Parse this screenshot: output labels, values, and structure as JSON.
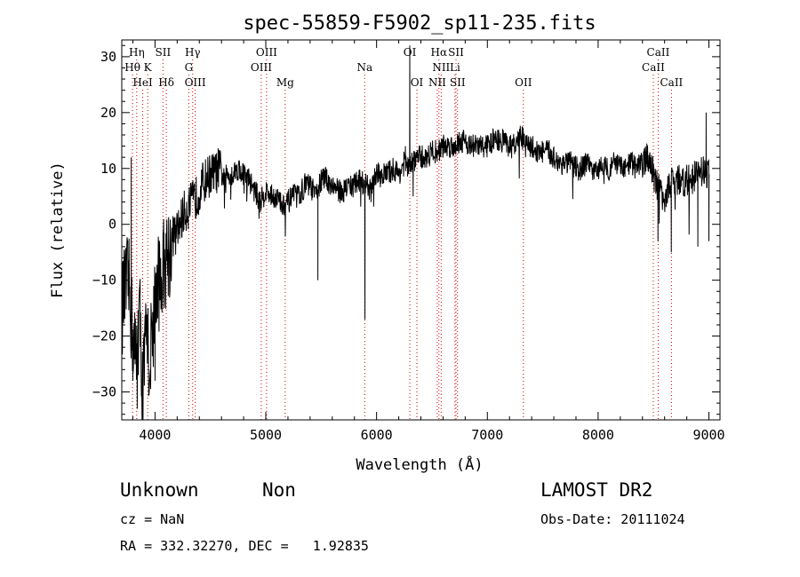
{
  "chart_data": {
    "type": "line",
    "title": "spec-55859-F5902_sp11-235.fits",
    "xlabel": "Wavelength (Å)",
    "ylabel": "Flux (relative)",
    "xlim": [
      3700,
      9100
    ],
    "ylim": [
      -35,
      33
    ],
    "x_ticks": [
      4000,
      5000,
      6000,
      7000,
      8000,
      9000
    ],
    "y_ticks": [
      -30,
      -20,
      -10,
      0,
      10,
      20,
      30
    ],
    "grid": false,
    "line_color": "#000000",
    "marker_color": "#cc0000",
    "spectral_lines": [
      {
        "label": "Hη",
        "x": 3835,
        "row": 0
      },
      {
        "label": "SII",
        "x": 4072,
        "row": 0
      },
      {
        "label": "Hγ",
        "x": 4340,
        "row": 0
      },
      {
        "label": "OIII",
        "x": 5007,
        "row": 0
      },
      {
        "label": "OI",
        "x": 6300,
        "row": 0
      },
      {
        "label": "Hα",
        "x": 6563,
        "row": 0
      },
      {
        "label": "SII",
        "x": 6717,
        "row": 0
      },
      {
        "label": "CaII",
        "x": 8542,
        "row": 0
      },
      {
        "label": "Hθ",
        "x": 3797,
        "row": 1
      },
      {
        "label": "K",
        "x": 3934,
        "row": 1
      },
      {
        "label": "G",
        "x": 4305,
        "row": 1
      },
      {
        "label": "OIII",
        "x": 4959,
        "row": 1
      },
      {
        "label": "Na",
        "x": 5893,
        "row": 1
      },
      {
        "label": "NII",
        "x": 6583,
        "row": 1
      },
      {
        "label": "Li",
        "x": 6708,
        "row": 1
      },
      {
        "label": "CaII",
        "x": 8498,
        "row": 1
      },
      {
        "label": "HeI",
        "x": 3889,
        "row": 2
      },
      {
        "label": "Hδ",
        "x": 4102,
        "row": 2
      },
      {
        "label": "OIII",
        "x": 4363,
        "row": 2
      },
      {
        "label": "Mg",
        "x": 5175,
        "row": 2
      },
      {
        "label": "OI",
        "x": 6364,
        "row": 2
      },
      {
        "label": "NII",
        "x": 6548,
        "row": 2
      },
      {
        "label": "SII",
        "x": 6731,
        "row": 2
      },
      {
        "label": "OII",
        "x": 7325,
        "row": 2
      },
      {
        "label": "CaII",
        "x": 8662,
        "row": 2
      }
    ],
    "series": [
      {
        "x": [
          3700,
          3760,
          3800,
          3830,
          3860,
          3890,
          3920,
          3950,
          3980,
          4010,
          4040,
          4070,
          4100,
          4130,
          4160,
          4190,
          4220,
          4260,
          4300,
          4340,
          4380,
          4420,
          4460,
          4500,
          4540,
          4580,
          4620,
          4660,
          4700,
          4750,
          4800,
          4850,
          4900,
          4950,
          5000,
          5050,
          5100,
          5150,
          5200,
          5250,
          5300,
          5350,
          5400,
          5450,
          5500,
          5550,
          5600,
          5650,
          5700,
          5750,
          5800,
          5850,
          5900,
          5950,
          6000,
          6050,
          6100,
          6150,
          6200,
          6250,
          6300,
          6350,
          6400,
          6450,
          6500,
          6550,
          6600,
          6650,
          6700,
          6750,
          6800,
          6850,
          6900,
          6950,
          7000,
          7050,
          7100,
          7150,
          7200,
          7250,
          7300,
          7350,
          7400,
          7450,
          7500,
          7550,
          7600,
          7650,
          7700,
          7750,
          7800,
          7850,
          7900,
          7950,
          8000,
          8050,
          8100,
          8150,
          8200,
          8250,
          8300,
          8350,
          8400,
          8450,
          8500,
          8550,
          8600,
          8650,
          8700,
          8750,
          8800,
          8850,
          8900,
          8950,
          9000
        ],
        "y": [
          -15,
          -10,
          -20,
          -25,
          -15,
          -30,
          -20,
          -25,
          -18,
          -12,
          -10,
          -8,
          -5,
          -5,
          -2,
          -2,
          0,
          2,
          3,
          4,
          5,
          7,
          8,
          9,
          9,
          10,
          8,
          9,
          9,
          10,
          9,
          8,
          6,
          4,
          6,
          5,
          5,
          3,
          4,
          5,
          5,
          7,
          7,
          5,
          8,
          8,
          7,
          6,
          6,
          7,
          7,
          8,
          7,
          6,
          9,
          9,
          9,
          10,
          9,
          11,
          10,
          12,
          12,
          12,
          13,
          13,
          14,
          14,
          14,
          15,
          15,
          14,
          14,
          14,
          14,
          15,
          15,
          15,
          14,
          14,
          16,
          14,
          14,
          13,
          13,
          13,
          12,
          11,
          11,
          11,
          10,
          10,
          11,
          9,
          10,
          11,
          10,
          11,
          10,
          10,
          11,
          10,
          11,
          12,
          9,
          6,
          5,
          7,
          8,
          8,
          8,
          8,
          9,
          10,
          9
        ]
      }
    ],
    "spikes": [
      {
        "x": 3785,
        "y": 12
      },
      {
        "x": 3800,
        "y": -28
      },
      {
        "x": 3840,
        "y": -33
      },
      {
        "x": 4000,
        "y": -28
      },
      {
        "x": 4080,
        "y": -15
      },
      {
        "x": 5470,
        "y": -10
      },
      {
        "x": 5895,
        "y": -17
      },
      {
        "x": 6260,
        "y": 14
      },
      {
        "x": 6300,
        "y": 32
      },
      {
        "x": 6330,
        "y": 5
      },
      {
        "x": 8540,
        "y": -3
      },
      {
        "x": 8660,
        "y": -5
      },
      {
        "x": 8900,
        "y": -4
      },
      {
        "x": 8975,
        "y": 20
      },
      {
        "x": 9000,
        "y": -3
      }
    ]
  },
  "info": {
    "class": "Unknown",
    "subclass": "Non",
    "survey": "LAMOST DR2",
    "cz": "cz = NaN",
    "obs_date": "Obs-Date: 20111024",
    "coords": "RA = 332.32270, DEC =   1.92835"
  }
}
